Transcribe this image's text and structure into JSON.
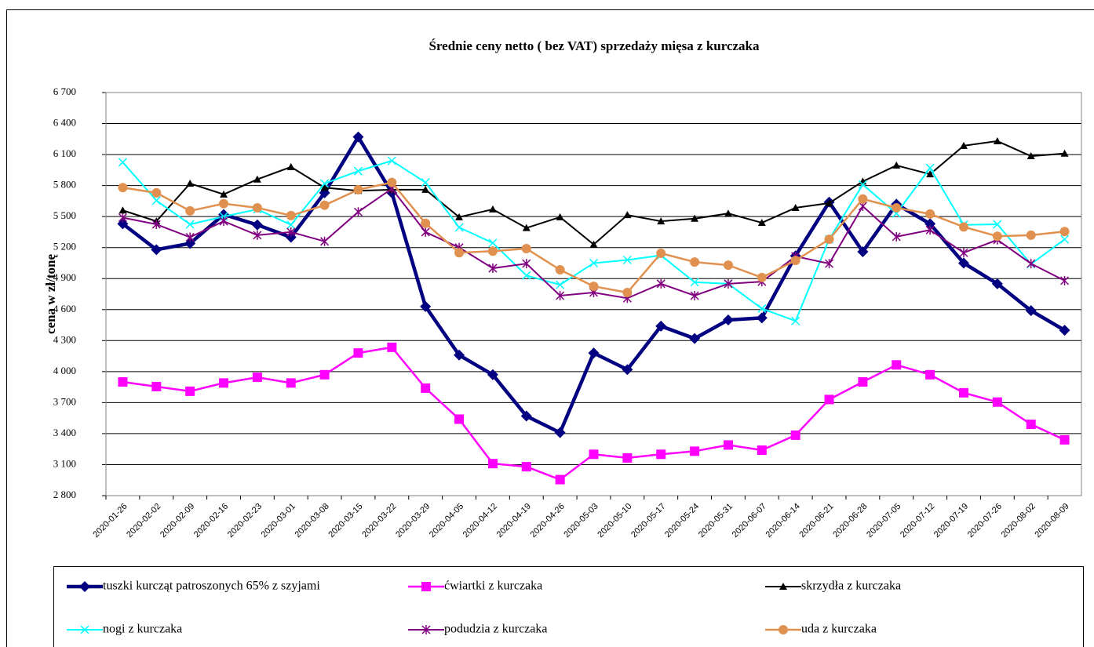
{
  "chart_data": {
    "type": "line",
    "title": "Średnie ceny netto ( bez VAT) sprzedaży mięsa z kurczaka",
    "ylabel": "cena w zł/tonę",
    "categories": [
      "2020-01-26",
      "2020-02-02",
      "2020-02-09",
      "2020-02-16",
      "2020-02-23",
      "2020-03-01",
      "2020-03-08",
      "2020-03-15",
      "2020-03-22",
      "2020-03-29",
      "2020-04-05",
      "2020-04-12",
      "2020-04-19",
      "2020-04-26",
      "2020-05-03",
      "2020-05-10",
      "2020-05-17",
      "2020-05-24",
      "2020-05-31",
      "2020-06-07",
      "2020-06-14",
      "2020-06-21",
      "2020-06-28",
      "2020-07-05",
      "2020-07-12",
      "2020-07-19",
      "2020-07-26",
      "2020-08-02",
      "2020-08-09"
    ],
    "ylim": [
      2800,
      6700
    ],
    "yticks": [
      {
        "value": 2800,
        "label": "2 800"
      },
      {
        "value": 3100,
        "label": "3 100"
      },
      {
        "value": 3400,
        "label": "3 400"
      },
      {
        "value": 3700,
        "label": "3 700"
      },
      {
        "value": 4000,
        "label": "4 000"
      },
      {
        "value": 4300,
        "label": "4 300"
      },
      {
        "value": 4600,
        "label": "4 600"
      },
      {
        "value": 4900,
        "label": "4 900"
      },
      {
        "value": 5200,
        "label": "5 200"
      },
      {
        "value": 5500,
        "label": "5 500"
      },
      {
        "value": 5800,
        "label": "5 800"
      },
      {
        "value": 6100,
        "label": "6 100"
      },
      {
        "value": 6400,
        "label": "6 400"
      },
      {
        "value": 6700,
        "label": "6 700"
      }
    ],
    "grid": true,
    "legend": "bottom",
    "series": [
      {
        "name": "tuszki kurcząt patroszonych 65% z szyjami",
        "color": "#000080",
        "marker": "diamond",
        "values": [
          5430,
          5180,
          5240,
          5520,
          5420,
          5300,
          5730,
          6270,
          5730,
          4630,
          4160,
          3970,
          3570,
          3410,
          4180,
          4020,
          4440,
          4320,
          4500,
          4520,
          5120,
          5640,
          5160,
          5620,
          5430,
          5050,
          4850,
          4590,
          4400
        ]
      },
      {
        "name": "ćwiartki z kurczaka",
        "color": "#ff00ff",
        "marker": "square",
        "values": [
          3900,
          3855,
          3810,
          3890,
          3945,
          3890,
          3970,
          4180,
          4235,
          3840,
          3540,
          3110,
          3080,
          2955,
          3200,
          3165,
          3200,
          3230,
          3290,
          3240,
          3385,
          3730,
          3900,
          4065,
          3970,
          3795,
          3705,
          3490,
          3340
        ]
      },
      {
        "name": "skrzydła z kurczaka",
        "color": "#000000",
        "marker": "triangle",
        "values": [
          5560,
          5455,
          5820,
          5715,
          5860,
          5980,
          5780,
          5750,
          5760,
          5760,
          5495,
          5570,
          5390,
          5495,
          5230,
          5515,
          5455,
          5480,
          5530,
          5440,
          5585,
          5630,
          5840,
          5995,
          5910,
          6185,
          6230,
          6085,
          6110
        ]
      },
      {
        "name": "nogi z kurczaka",
        "color": "#00ffff",
        "marker": "x",
        "values": [
          6025,
          5655,
          5425,
          5500,
          5570,
          5420,
          5820,
          5940,
          6040,
          5830,
          5395,
          5245,
          4930,
          4840,
          5050,
          5080,
          5125,
          4865,
          4850,
          4610,
          4490,
          5280,
          5810,
          5530,
          5970,
          5420,
          5425,
          5040,
          5280
        ]
      },
      {
        "name": "podudzia z kurczaka",
        "color": "#800080",
        "marker": "star",
        "values": [
          5490,
          5425,
          5300,
          5455,
          5320,
          5350,
          5260,
          5545,
          5770,
          5350,
          5200,
          5000,
          5045,
          4735,
          4765,
          4710,
          4850,
          4735,
          4850,
          4870,
          5115,
          5045,
          5600,
          5305,
          5370,
          5150,
          5275,
          5045,
          4880
        ]
      },
      {
        "name": "uda z kurczaka",
        "color": "#e0914f",
        "marker": "circle",
        "values": [
          5780,
          5730,
          5555,
          5625,
          5585,
          5510,
          5610,
          5760,
          5830,
          5435,
          5150,
          5165,
          5190,
          4985,
          4825,
          4765,
          5145,
          5060,
          5030,
          4910,
          5075,
          5280,
          5670,
          5585,
          5525,
          5400,
          5310,
          5320,
          5355
        ]
      }
    ]
  }
}
